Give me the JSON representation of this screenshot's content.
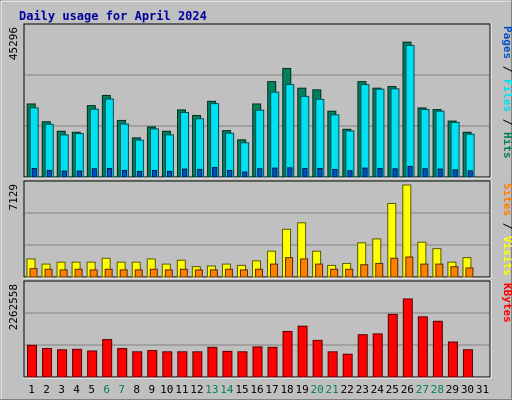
{
  "chart_data": {
    "type": "bar",
    "title": "Daily usage for April 2024",
    "categories": [
      "1",
      "2",
      "3",
      "4",
      "5",
      "6",
      "7",
      "8",
      "9",
      "10",
      "11",
      "12",
      "13",
      "14",
      "15",
      "16",
      "17",
      "18",
      "19",
      "20",
      "21",
      "22",
      "23",
      "24",
      "25",
      "26",
      "27",
      "28",
      "29",
      "30",
      "31"
    ],
    "weekend_days": [
      "6",
      "7",
      "13",
      "14",
      "20",
      "21",
      "27",
      "28"
    ],
    "panels": [
      {
        "id": "hits",
        "max_label": "45296",
        "ylim": [
          0,
          45296
        ],
        "axis_label": [
          "Pages",
          "Files",
          "Hits"
        ],
        "series": [
          {
            "name": "Hits",
            "color": "#00805c",
            "values": [
              22200,
              16800,
              13900,
              13600,
              21700,
              24800,
              17200,
              11900,
              15200,
              13900,
              20400,
              18700,
              23000,
              14100,
              11300,
              22200,
              29000,
              33000,
              27000,
              26500,
              20000,
              14500,
              29000,
              27000,
              27500,
              41000,
              21000,
              20500,
              17000,
              13600,
              0
            ]
          },
          {
            "name": "Files",
            "color": "#00e0f0",
            "values": [
              21000,
              16000,
              12800,
              13200,
              20600,
              23700,
              16100,
              11200,
              14600,
              12800,
              19600,
              17700,
              22300,
              13300,
              10400,
              20300,
              25800,
              28100,
              24500,
              23600,
              18900,
              14000,
              28100,
              26700,
              26800,
              40000,
              20500,
              20000,
              16600,
              13000,
              0
            ]
          },
          {
            "name": "Pages",
            "color": "#0050c8",
            "values": [
              2600,
              2000,
              1800,
              1800,
              2500,
              2600,
              2000,
              1700,
              2000,
              1700,
              2400,
              2300,
              2900,
              2000,
              1500,
              2500,
              2700,
              2800,
              2600,
              2600,
              2300,
              1900,
              2700,
              2600,
              2500,
              3200,
              2500,
              2400,
              2200,
              1900,
              0
            ]
          }
        ]
      },
      {
        "id": "visits",
        "max_label": "7129",
        "ylim": [
          0,
          7129
        ],
        "axis_label": [
          "Sites",
          "Visits"
        ],
        "series": [
          {
            "name": "Visits",
            "color": "#ffff00",
            "values": [
              1400,
              1000,
              1150,
              1150,
              1150,
              1450,
              1150,
              1150,
              1400,
              1000,
              1300,
              800,
              850,
              1000,
              900,
              1250,
              2000,
              3700,
              4200,
              2000,
              900,
              1050,
              2650,
              2950,
              5700,
              7129,
              2700,
              2200,
              1150,
              1500,
              0
            ]
          },
          {
            "name": "Sites",
            "color": "#ff8000",
            "values": [
              650,
              600,
              550,
              600,
              550,
              600,
              550,
              550,
              600,
              550,
              600,
              550,
              550,
              600,
              550,
              600,
              1000,
              1500,
              1400,
              1000,
              600,
              600,
              950,
              1050,
              1450,
              1550,
              1000,
              1000,
              800,
              700,
              0
            ]
          }
        ]
      },
      {
        "id": "kbytes",
        "max_label": "2262558",
        "ylim": [
          0,
          2262558
        ],
        "axis_label": [
          "KBytes"
        ],
        "series": [
          {
            "name": "KBytes",
            "color": "#ff0000",
            "values": [
              780000,
              700000,
              670000,
              680000,
              640000,
              920000,
              700000,
              620000,
              650000,
              620000,
              620000,
              620000,
              730000,
              630000,
              620000,
              740000,
              730000,
              1120000,
              1250000,
              900000,
              620000,
              560000,
              1040000,
              1060000,
              1540000,
              1920000,
              1480000,
              1370000,
              860000,
              670000,
              0
            ]
          }
        ]
      }
    ]
  }
}
